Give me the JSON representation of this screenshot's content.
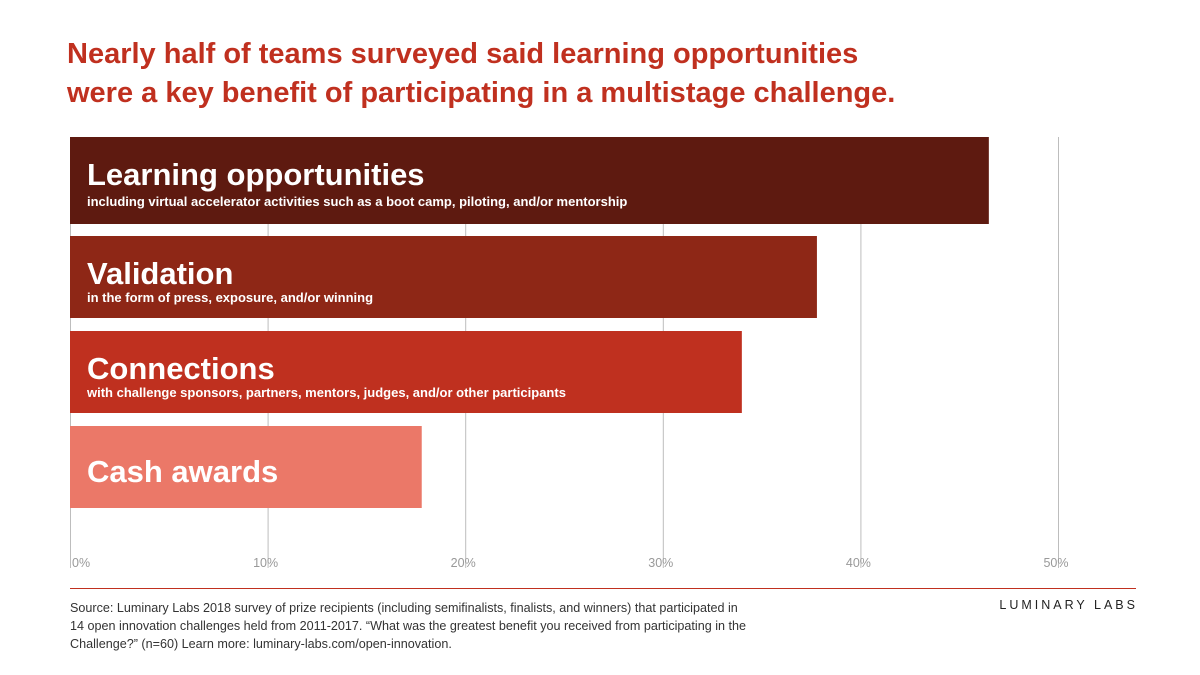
{
  "title": {
    "line1": "Nearly half of teams surveyed said learning opportunities",
    "line2": "were a key benefit of participating in a multistage challenge."
  },
  "colors": {
    "title": "#c0301f",
    "bars": [
      "#5e1a10",
      "#8e2716",
      "#bf301f",
      "#eb7868"
    ],
    "gridline": "#bdbdbd",
    "bar_text": "#ffffff"
  },
  "chart_data": {
    "type": "bar",
    "orientation": "horizontal",
    "categories": [
      "Learning opportunities",
      "Validation",
      "Connections",
      "Cash awards"
    ],
    "subtitles": [
      "including virtual accelerator activities such as a boot camp, piloting, and/or mentorship",
      "in the form of press, exposure, and/or winning",
      "with challenge sponsors, partners, mentors, judges, and/or other participants",
      ""
    ],
    "values": [
      46.5,
      37.8,
      34,
      17.8
    ],
    "unit": "%",
    "xlim": [
      0,
      50
    ],
    "xticks": [
      0,
      10,
      20,
      30,
      40,
      50
    ],
    "xtick_labels": [
      "0%",
      "10%",
      "20%",
      "30%",
      "40%",
      "50%"
    ],
    "grid": true
  },
  "footer": {
    "source_lines": [
      "Source: Luminary Labs 2018 survey of prize recipients (including semifinalists, finalists, and winners) that participated in",
      "14 open innovation challenges held from 2011-2017. “What was the greatest benefit you received from participating in the",
      "Challenge?” (n=60) Learn more: luminary-labs.com/open-innovation."
    ],
    "brand": "LUMINARY LABS"
  }
}
